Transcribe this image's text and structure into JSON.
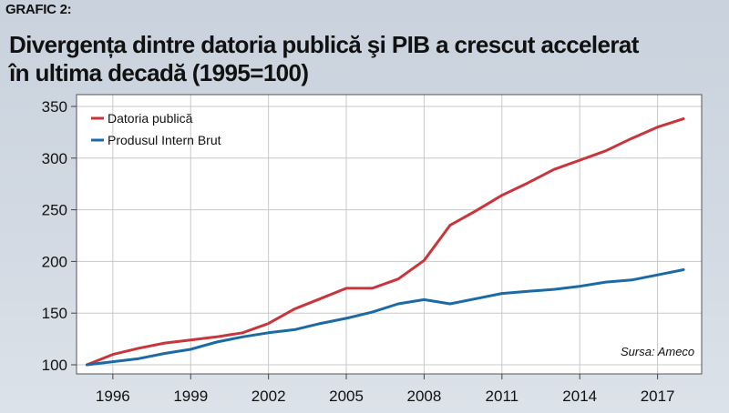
{
  "header": {
    "label": "GRAFIC 2:",
    "title_line1": "Divergența dintre datoria publică şi PIB a crescut accelerat",
    "title_line2": "în ultima decadă (1995=100)"
  },
  "source": "Sursa: Ameco",
  "chart_data": {
    "type": "line",
    "title": "Divergența dintre datoria publică şi PIB a crescut accelerat în ultima decadă (1995=100)",
    "x": [
      1995,
      1996,
      1997,
      1998,
      1999,
      2000,
      2001,
      2002,
      2003,
      2004,
      2005,
      2006,
      2007,
      2008,
      2009,
      2010,
      2011,
      2012,
      2013,
      2014,
      2015,
      2016,
      2017,
      2018
    ],
    "x_ticks": [
      1996,
      1999,
      2002,
      2005,
      2008,
      2011,
      2014,
      2017
    ],
    "y_ticks": [
      100,
      150,
      200,
      250,
      300,
      350
    ],
    "ylim": [
      100,
      350
    ],
    "xlim": [
      1994.6,
      2018.7
    ],
    "grid": true,
    "legend_position": "top-left",
    "series": [
      {
        "name": "Datoria publică",
        "color": "#c8353a",
        "values": [
          100,
          110,
          116,
          121,
          124,
          127,
          131,
          140,
          154,
          164,
          174,
          174,
          183,
          201,
          235,
          249,
          264,
          276,
          289,
          298,
          307,
          319,
          330,
          338
        ]
      },
      {
        "name": "Produsul Intern Brut",
        "color": "#1b6aa5",
        "values": [
          100,
          103,
          106,
          111,
          115,
          122,
          127,
          131,
          134,
          140,
          145,
          151,
          159,
          163,
          159,
          164,
          169,
          171,
          173,
          176,
          180,
          182,
          187,
          192
        ]
      }
    ]
  }
}
